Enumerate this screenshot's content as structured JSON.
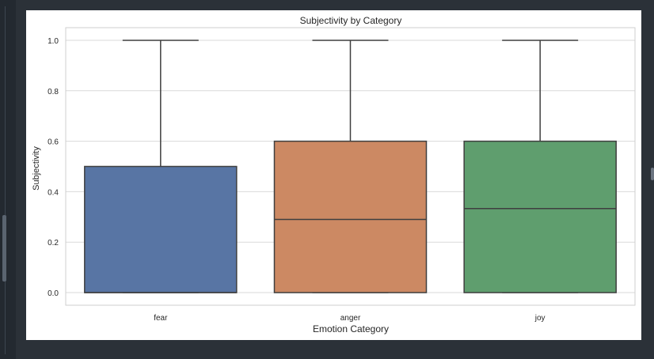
{
  "chart_data": {
    "type": "box",
    "title": "Subjectivity by Category",
    "xlabel": "Emotion Category",
    "ylabel": "Subjectivity",
    "ylim": [
      -0.05,
      1.05
    ],
    "yticks": [
      "0.0",
      "0.2",
      "0.4",
      "0.6",
      "0.8",
      "1.0"
    ],
    "ytick_values": [
      0.0,
      0.2,
      0.4,
      0.6,
      0.8,
      1.0
    ],
    "grid": true,
    "categories": [
      "fear",
      "anger",
      "joy"
    ],
    "boxes": [
      {
        "category": "fear",
        "whisker_low": 0.0,
        "q1": 0.0,
        "median": 0.0,
        "q3": 0.5,
        "whisker_high": 1.0,
        "color": "#5875a4"
      },
      {
        "category": "anger",
        "whisker_low": 0.0,
        "q1": 0.0,
        "median": 0.29,
        "q3": 0.6,
        "whisker_high": 1.0,
        "color": "#cc8963"
      },
      {
        "category": "joy",
        "whisker_low": 0.0,
        "q1": 0.0,
        "median": 0.333,
        "q3": 0.6,
        "whisker_high": 1.0,
        "color": "#5f9e6e"
      }
    ]
  }
}
